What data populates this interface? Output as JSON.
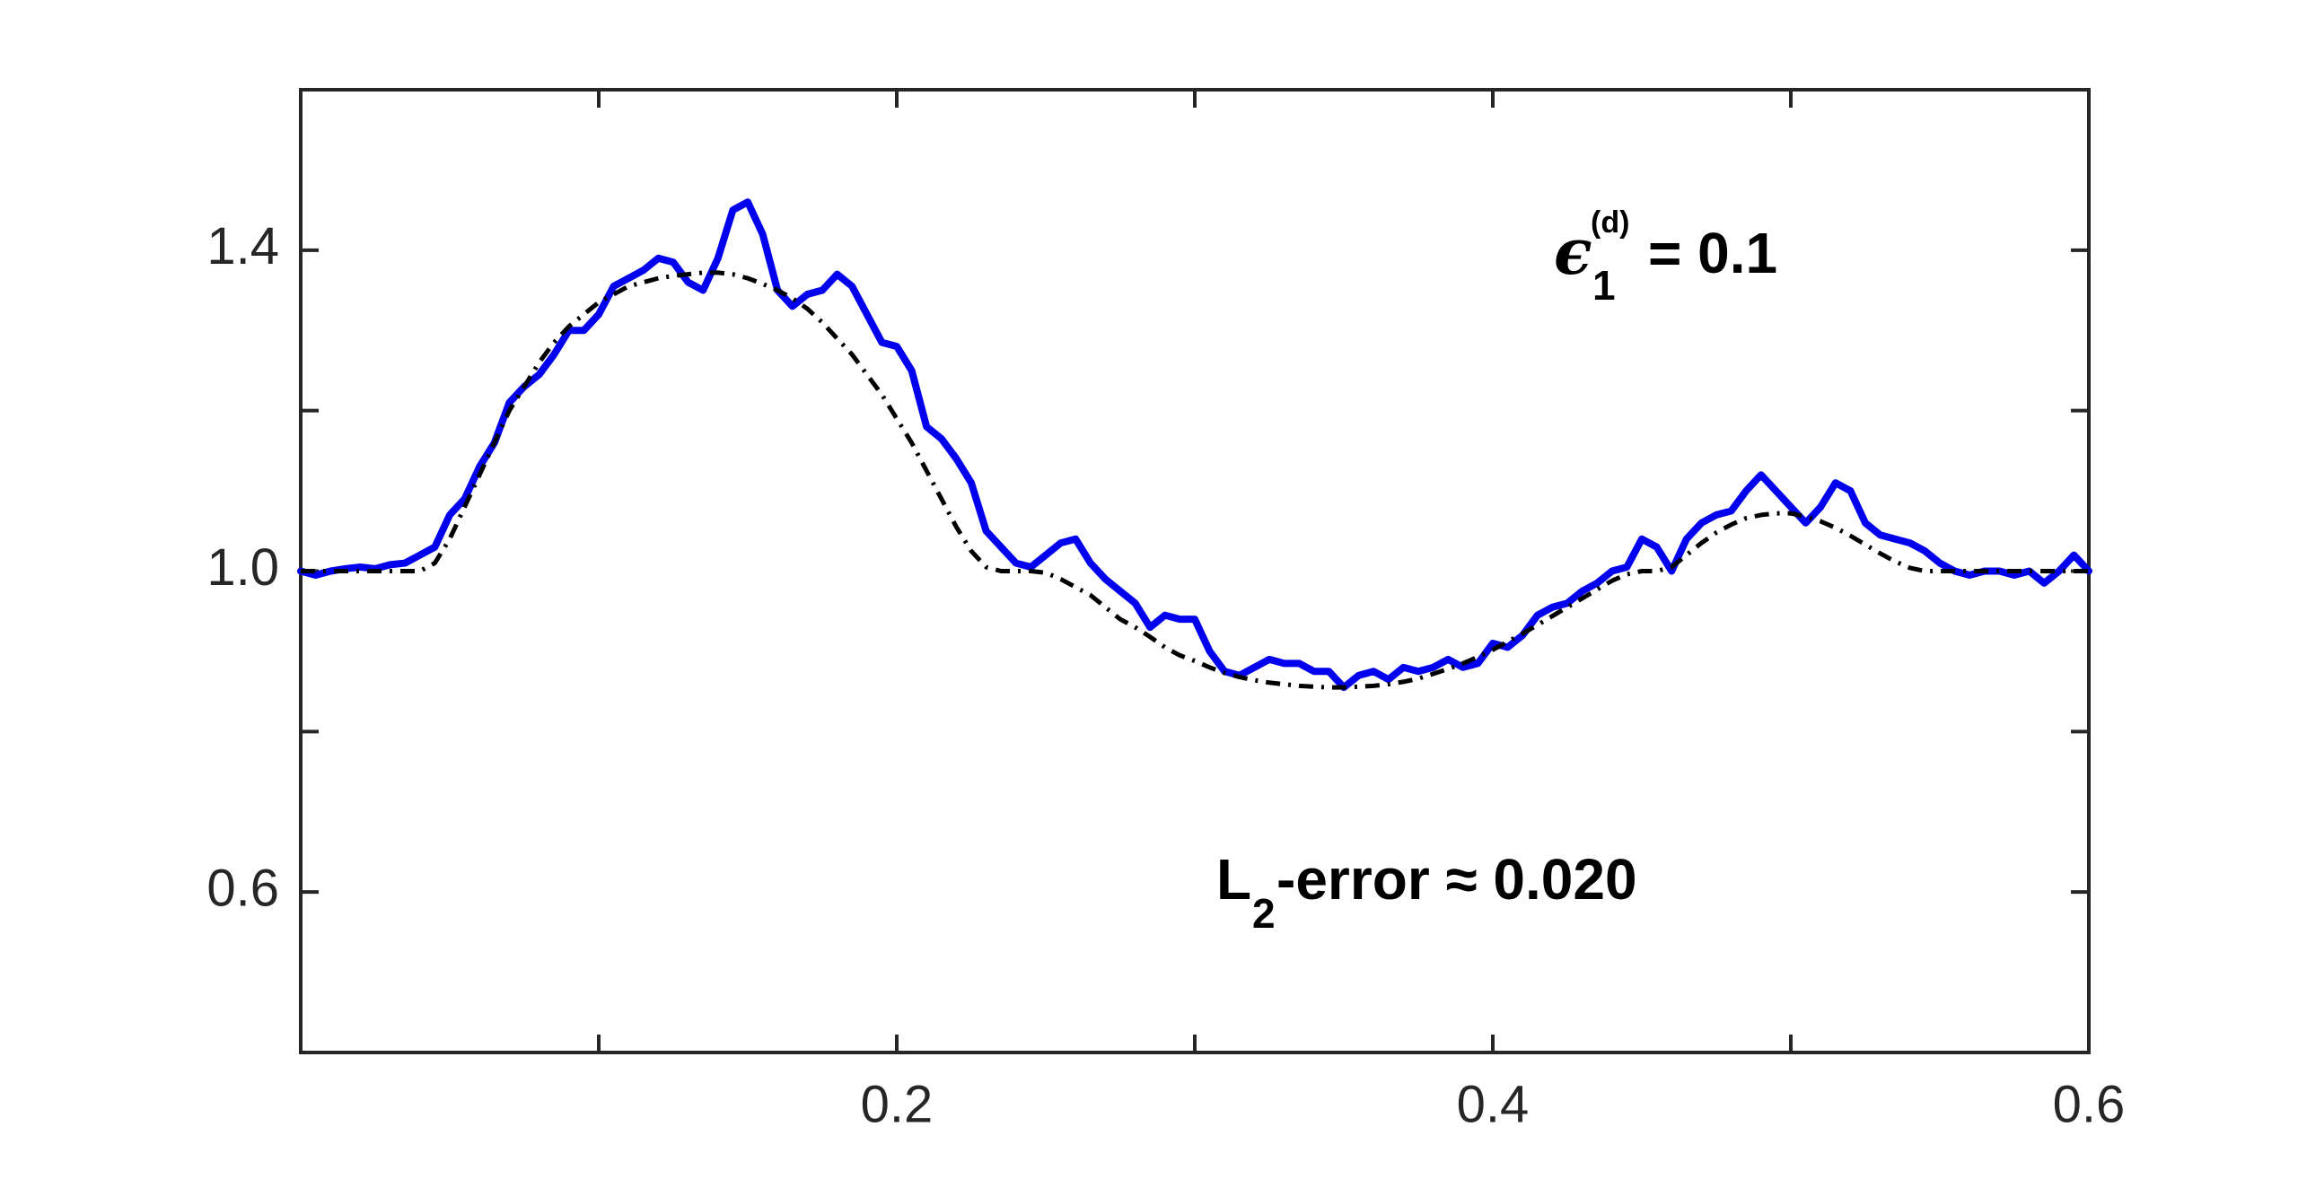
{
  "chart_data": {
    "type": "line",
    "x": [
      0,
      0.005,
      0.01,
      0.015,
      0.02,
      0.025,
      0.03,
      0.035,
      0.04,
      0.045,
      0.05,
      0.055,
      0.06,
      0.065,
      0.07,
      0.075,
      0.08,
      0.085,
      0.09,
      0.095,
      0.1,
      0.105,
      0.11,
      0.115,
      0.12,
      0.125,
      0.13,
      0.135,
      0.14,
      0.145,
      0.15,
      0.155,
      0.16,
      0.165,
      0.17,
      0.175,
      0.18,
      0.185,
      0.19,
      0.195,
      0.2,
      0.205,
      0.21,
      0.215,
      0.22,
      0.225,
      0.23,
      0.235,
      0.24,
      0.245,
      0.25,
      0.255,
      0.26,
      0.265,
      0.27,
      0.275,
      0.28,
      0.285,
      0.29,
      0.295,
      0.3,
      0.305,
      0.31,
      0.315,
      0.32,
      0.325,
      0.33,
      0.335,
      0.34,
      0.345,
      0.35,
      0.355,
      0.36,
      0.365,
      0.37,
      0.375,
      0.38,
      0.385,
      0.39,
      0.395,
      0.4,
      0.405,
      0.41,
      0.415,
      0.42,
      0.425,
      0.43,
      0.435,
      0.44,
      0.445,
      0.45,
      0.455,
      0.46,
      0.465,
      0.47,
      0.475,
      0.48,
      0.485,
      0.49,
      0.495,
      0.5,
      0.505,
      0.51,
      0.515,
      0.52,
      0.525,
      0.53,
      0.535,
      0.54,
      0.545,
      0.55,
      0.555,
      0.56,
      0.565,
      0.57,
      0.575,
      0.58,
      0.585,
      0.59,
      0.595,
      0.6
    ],
    "series": [
      {
        "color": "#0000ee",
        "style": "solid",
        "values": [
          1.0,
          0.995,
          1.0,
          1.003,
          1.005,
          1.003,
          1.008,
          1.01,
          1.02,
          1.03,
          1.07,
          1.09,
          1.13,
          1.16,
          1.21,
          1.23,
          1.245,
          1.27,
          1.3,
          1.3,
          1.32,
          1.355,
          1.365,
          1.375,
          1.39,
          1.385,
          1.36,
          1.35,
          1.39,
          1.45,
          1.46,
          1.42,
          1.35,
          1.33,
          1.345,
          1.35,
          1.37,
          1.355,
          1.32,
          1.285,
          1.28,
          1.25,
          1.18,
          1.165,
          1.14,
          1.11,
          1.05,
          1.03,
          1.01,
          1.005,
          1.02,
          1.035,
          1.04,
          1.01,
          0.99,
          0.975,
          0.96,
          0.93,
          0.945,
          0.94,
          0.94,
          0.9,
          0.875,
          0.87,
          0.88,
          0.89,
          0.885,
          0.885,
          0.875,
          0.875,
          0.855,
          0.87,
          0.875,
          0.865,
          0.88,
          0.875,
          0.88,
          0.89,
          0.88,
          0.885,
          0.91,
          0.905,
          0.92,
          0.945,
          0.955,
          0.96,
          0.975,
          0.985,
          1.0,
          1.005,
          1.04,
          1.03,
          1.0,
          1.04,
          1.06,
          1.07,
          1.075,
          1.1,
          1.12,
          1.1,
          1.08,
          1.06,
          1.08,
          1.11,
          1.1,
          1.06,
          1.045,
          1.04,
          1.035,
          1.025,
          1.01,
          1.0,
          0.995,
          1.0,
          1.0,
          0.995,
          1.0,
          0.985,
          1.0,
          1.02,
          1.0
        ]
      },
      {
        "color": "#000000",
        "style": "dashdot",
        "values": [
          1.0,
          1.0,
          1.0,
          1.0,
          1.0,
          1.0,
          1.0,
          1.0,
          1.0,
          1.01,
          1.04,
          1.08,
          1.12,
          1.16,
          1.2,
          1.23,
          1.26,
          1.285,
          1.305,
          1.32,
          1.335,
          1.345,
          1.355,
          1.36,
          1.365,
          1.368,
          1.37,
          1.372,
          1.372,
          1.37,
          1.365,
          1.358,
          1.35,
          1.34,
          1.327,
          1.31,
          1.29,
          1.27,
          1.245,
          1.22,
          1.19,
          1.16,
          1.125,
          1.09,
          1.055,
          1.025,
          1.005,
          1.0,
          1.0,
          1.0,
          0.998,
          0.99,
          0.98,
          0.97,
          0.955,
          0.94,
          0.93,
          0.918,
          0.905,
          0.895,
          0.888,
          0.88,
          0.873,
          0.868,
          0.864,
          0.861,
          0.859,
          0.857,
          0.856,
          0.855,
          0.855,
          0.856,
          0.857,
          0.859,
          0.862,
          0.866,
          0.872,
          0.878,
          0.885,
          0.893,
          0.902,
          0.912,
          0.922,
          0.933,
          0.944,
          0.955,
          0.966,
          0.977,
          0.988,
          0.996,
          1.0,
          1.0,
          1.005,
          1.02,
          1.035,
          1.048,
          1.058,
          1.066,
          1.07,
          1.072,
          1.072,
          1.068,
          1.062,
          1.054,
          1.044,
          1.033,
          1.022,
          1.012,
          1.004,
          1.0,
          1.0,
          1.0,
          1.0,
          1.0,
          1.0,
          1.0,
          1.0,
          1.0,
          1.0,
          1.0,
          1.0
        ]
      }
    ],
    "xlim": [
      0,
      0.6
    ],
    "ylim": [
      0.4,
      1.6
    ],
    "xticks": [
      0.2,
      0.4,
      0.6
    ],
    "xminor_ticks": [
      0.1,
      0.3,
      0.5
    ],
    "yticks": [
      0.6,
      {
        "value": 1,
        "label": "1.0"
      },
      1.4
    ],
    "yminor_ticks": [
      0.8,
      1.2
    ],
    "grid": false,
    "annotations": [
      {
        "symbol": "ϵ",
        "sub": "1",
        "sup": "(d)",
        "text": "= 0.1"
      },
      {
        "symbol": "L",
        "sub": "2",
        "text": "-error ≈ 0.020"
      }
    ]
  }
}
